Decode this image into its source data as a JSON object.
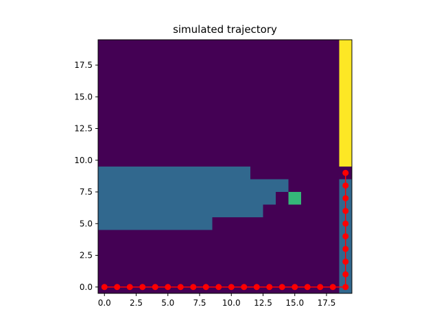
{
  "chart_data": {
    "type": "heatmap",
    "title": "simulated trajectory",
    "xlabel": "",
    "ylabel": "",
    "xlim": [
      -0.5,
      19.5
    ],
    "ylim": [
      -0.5,
      19.5
    ],
    "grid": false,
    "colormap": "viridis",
    "colors": {
      "empty": "#440154",
      "region": "#31688e",
      "goal": "#35b779",
      "wall": "#fde725",
      "trajectory": "#ff0000"
    },
    "x_ticks": [
      0.0,
      2.5,
      5.0,
      7.5,
      10.0,
      12.5,
      15.0,
      17.5
    ],
    "x_tick_labels": [
      "0.0",
      "2.5",
      "5.0",
      "7.5",
      "10.0",
      "12.5",
      "15.0",
      "17.5"
    ],
    "y_ticks": [
      0.0,
      2.5,
      5.0,
      7.5,
      10.0,
      12.5,
      15.0,
      17.5
    ],
    "y_tick_labels": [
      "0.0",
      "2.5",
      "5.0",
      "7.5",
      "10.0",
      "12.5",
      "15.0",
      "17.5"
    ],
    "cells": [
      {
        "kind": "region",
        "x": [
          0,
          11
        ],
        "y": [
          9,
          9
        ]
      },
      {
        "kind": "region",
        "x": [
          0,
          14
        ],
        "y": [
          8,
          8
        ]
      },
      {
        "kind": "region",
        "x": [
          0,
          13
        ],
        "y": [
          7,
          7
        ]
      },
      {
        "kind": "region",
        "x": [
          0,
          12
        ],
        "y": [
          6,
          6
        ]
      },
      {
        "kind": "region",
        "x": [
          0,
          8
        ],
        "y": [
          5,
          5
        ]
      },
      {
        "kind": "goal",
        "x": [
          15,
          15
        ],
        "y": [
          7,
          7
        ]
      },
      {
        "kind": "wall",
        "x": [
          19,
          19
        ],
        "y": [
          10,
          19
        ]
      },
      {
        "kind": "region",
        "x": [
          19,
          19
        ],
        "y": [
          0,
          8
        ]
      }
    ],
    "series": [
      {
        "x": [
          0,
          1,
          2,
          3,
          4,
          5,
          6,
          7,
          8,
          9,
          10,
          11,
          12,
          13,
          14,
          15,
          16,
          17,
          18,
          19,
          19,
          19,
          19,
          19,
          19,
          19,
          19,
          19,
          19
        ],
        "y": [
          0,
          0,
          0,
          0,
          0,
          0,
          0,
          0,
          0,
          0,
          0,
          0,
          0,
          0,
          0,
          0,
          0,
          0,
          0,
          0,
          1,
          2,
          3,
          4,
          5,
          6,
          7,
          8,
          9
        ]
      }
    ]
  }
}
